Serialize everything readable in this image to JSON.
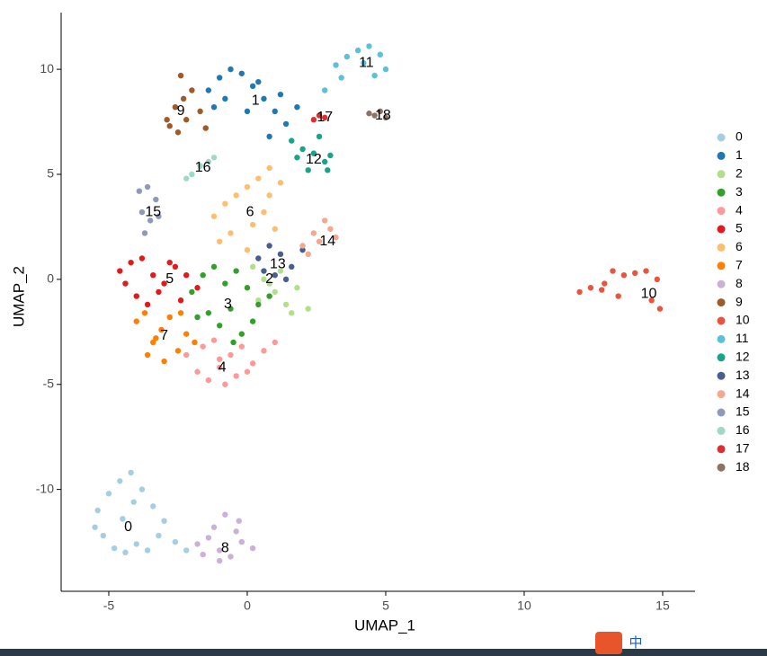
{
  "chart_data": {
    "type": "scatter",
    "xlabel": "UMAP_1",
    "ylabel": "UMAP_2",
    "xlim": [
      -6.72,
      16.17
    ],
    "ylim": [
      -14.85,
      12.7
    ],
    "xticks": [
      -5,
      0,
      5,
      10,
      15
    ],
    "yticks": [
      -10,
      -5,
      0,
      5,
      10
    ],
    "grid": false,
    "legend": "right",
    "series": [
      {
        "name": "0",
        "color": "#a6cee3",
        "x": [
          -5.4,
          -5.0,
          -4.6,
          -4.2,
          -3.8,
          -3.4,
          -3.0,
          -2.6,
          -5.2,
          -4.8,
          -4.4,
          -4.0,
          -3.6,
          -4.5,
          -4.1,
          -5.5,
          -3.2,
          -2.2
        ],
        "y": [
          -11.0,
          -10.2,
          -9.6,
          -9.2,
          -10.0,
          -10.8,
          -11.5,
          -12.5,
          -12.2,
          -12.8,
          -13.0,
          -12.6,
          -12.9,
          -11.4,
          -10.6,
          -11.8,
          -12.2,
          -12.9
        ]
      },
      {
        "name": "1",
        "color": "#1f78b4",
        "x": [
          -1.4,
          -1.0,
          -0.6,
          -0.2,
          0.2,
          0.6,
          1.0,
          1.4,
          1.8,
          -0.8,
          0.0,
          0.8,
          0.4,
          1.2,
          -1.2
        ],
        "y": [
          9.0,
          9.6,
          10.0,
          9.8,
          9.2,
          8.6,
          8.0,
          7.4,
          8.2,
          8.6,
          8.0,
          6.8,
          9.4,
          8.8,
          8.2
        ]
      },
      {
        "name": "2",
        "color": "#b2df8a",
        "x": [
          0.2,
          0.6,
          1.0,
          1.4,
          1.8,
          2.2,
          0.4,
          1.2,
          1.6,
          0.8
        ],
        "y": [
          0.6,
          0.0,
          -0.6,
          -1.2,
          -0.4,
          -1.4,
          -1.0,
          0.4,
          -1.6,
          -0.2
        ]
      },
      {
        "name": "3",
        "color": "#33a02c",
        "x": [
          -2.0,
          -1.6,
          -1.2,
          -0.8,
          -0.4,
          0.0,
          0.4,
          0.8,
          -1.4,
          -1.0,
          -0.6,
          -0.2,
          0.2,
          -1.8,
          -0.5
        ],
        "y": [
          -0.6,
          0.2,
          0.6,
          -0.2,
          0.4,
          -0.4,
          -1.2,
          -0.8,
          -1.6,
          -2.2,
          -1.4,
          -2.6,
          -2.0,
          -1.8,
          -3.0
        ]
      },
      {
        "name": "4",
        "color": "#fb9a99",
        "x": [
          -2.2,
          -1.8,
          -1.4,
          -1.0,
          -0.6,
          -0.2,
          0.2,
          0.6,
          1.0,
          -1.6,
          -1.2,
          -0.8,
          -0.4,
          0.0,
          -1.0
        ],
        "y": [
          -3.6,
          -4.4,
          -4.8,
          -4.2,
          -3.6,
          -3.2,
          -4.0,
          -3.4,
          -3.0,
          -3.2,
          -2.9,
          -5.0,
          -4.6,
          -4.4,
          -3.8
        ]
      },
      {
        "name": "5",
        "color": "#e31a1c",
        "x": [
          -4.6,
          -4.2,
          -3.8,
          -3.4,
          -3.0,
          -2.6,
          -2.2,
          -1.8,
          -4.0,
          -3.6,
          -3.2,
          -2.8,
          -2.4,
          -4.4
        ],
        "y": [
          0.4,
          0.8,
          1.0,
          0.2,
          -0.2,
          0.6,
          0.2,
          -0.4,
          -0.8,
          -1.2,
          -0.6,
          0.8,
          -1.0,
          -0.2
        ]
      },
      {
        "name": "6",
        "color": "#fdbf6f",
        "x": [
          -1.2,
          -0.8,
          -0.4,
          0.0,
          0.4,
          0.8,
          1.2,
          -0.6,
          0.2,
          0.6,
          1.0,
          -1.0,
          0.0,
          0.8
        ],
        "y": [
          3.0,
          3.6,
          4.0,
          4.4,
          4.8,
          5.3,
          4.6,
          2.2,
          2.6,
          3.2,
          2.4,
          1.8,
          1.4,
          4.0
        ]
      },
      {
        "name": "7",
        "color": "#ff7f00",
        "x": [
          -4.0,
          -3.7,
          -3.4,
          -3.1,
          -2.8,
          -2.5,
          -2.2,
          -1.9,
          -3.6,
          -3.0,
          -2.4,
          -3.3
        ],
        "y": [
          -2.0,
          -1.6,
          -3.0,
          -2.4,
          -1.8,
          -3.4,
          -2.6,
          -3.0,
          -3.6,
          -3.9,
          -1.6,
          -2.8
        ]
      },
      {
        "name": "8",
        "color": "#cab2d6",
        "x": [
          -1.8,
          -1.4,
          -1.0,
          -0.6,
          -0.2,
          0.2,
          -1.2,
          -0.8,
          -0.4,
          -1.0,
          -1.6,
          -0.3
        ],
        "y": [
          -12.6,
          -12.3,
          -12.9,
          -13.2,
          -12.5,
          -12.8,
          -11.8,
          -11.2,
          -12.0,
          -13.4,
          -13.1,
          -11.5
        ]
      },
      {
        "name": "9",
        "color": "#9e5a2a",
        "x": [
          -2.9,
          -2.6,
          -2.3,
          -2.0,
          -1.7,
          -2.8,
          -2.5,
          -2.2,
          -1.5,
          -2.4
        ],
        "y": [
          7.6,
          8.2,
          8.6,
          9.0,
          8.0,
          7.3,
          7.0,
          7.6,
          7.2,
          9.7
        ]
      },
      {
        "name": "10",
        "color": "#e8553f",
        "x": [
          12.0,
          12.4,
          12.8,
          13.2,
          13.6,
          14.0,
          14.4,
          14.8,
          14.9,
          14.6,
          13.4,
          12.9
        ],
        "y": [
          -0.6,
          -0.4,
          -0.5,
          0.4,
          0.2,
          0.3,
          0.4,
          0.0,
          -1.4,
          -1.0,
          -0.8,
          -0.2
        ]
      },
      {
        "name": "11",
        "color": "#5bc0da",
        "x": [
          3.2,
          3.6,
          4.0,
          4.4,
          4.8,
          5.0,
          3.4,
          2.8,
          4.6,
          4.2
        ],
        "y": [
          10.2,
          10.6,
          10.9,
          11.1,
          10.7,
          10.0,
          9.6,
          9.0,
          9.7,
          10.3
        ]
      },
      {
        "name": "12",
        "color": "#17a589",
        "x": [
          1.6,
          2.0,
          2.4,
          2.8,
          3.0,
          2.2,
          1.8,
          2.6,
          2.9
        ],
        "y": [
          6.6,
          6.2,
          6.0,
          5.6,
          5.9,
          5.2,
          5.8,
          6.8,
          5.2
        ]
      },
      {
        "name": "13",
        "color": "#4a5d8f",
        "x": [
          0.4,
          0.8,
          1.2,
          1.6,
          2.0,
          1.0,
          1.4,
          0.6
        ],
        "y": [
          1.0,
          1.6,
          1.2,
          0.6,
          1.4,
          0.2,
          0.0,
          0.4
        ]
      },
      {
        "name": "14",
        "color": "#f4a88e",
        "x": [
          2.2,
          2.6,
          3.0,
          3.2,
          2.8,
          2.4,
          2.0
        ],
        "y": [
          1.2,
          1.8,
          2.4,
          2.0,
          2.8,
          2.2,
          1.6
        ]
      },
      {
        "name": "15",
        "color": "#8f99bb",
        "x": [
          -3.9,
          -3.6,
          -3.3,
          -3.8,
          -3.5,
          -3.2,
          -3.7
        ],
        "y": [
          4.2,
          4.4,
          3.8,
          3.2,
          2.8,
          3.0,
          2.2
        ]
      },
      {
        "name": "16",
        "color": "#9fd8c6",
        "x": [
          -2.0,
          -1.7,
          -1.4,
          -2.2,
          -1.2
        ],
        "y": [
          5.0,
          5.4,
          5.6,
          4.8,
          5.8
        ]
      },
      {
        "name": "17",
        "color": "#dc2f2f",
        "x": [
          2.4,
          2.6,
          2.8
        ],
        "y": [
          7.6,
          7.8,
          7.7
        ]
      },
      {
        "name": "18",
        "color": "#8c7363",
        "x": [
          4.6,
          4.8,
          5.0,
          4.4
        ],
        "y": [
          7.8,
          8.0,
          7.7,
          7.9
        ]
      }
    ],
    "annotations": [
      {
        "text": "0",
        "x": -4.3,
        "y": -11.8
      },
      {
        "text": "1",
        "x": 0.3,
        "y": 8.5
      },
      {
        "text": "2",
        "x": 0.8,
        "y": 0.0
      },
      {
        "text": "3",
        "x": -0.7,
        "y": -1.2
      },
      {
        "text": "4",
        "x": -0.9,
        "y": -4.2
      },
      {
        "text": "5",
        "x": -2.8,
        "y": 0.0
      },
      {
        "text": "6",
        "x": 0.1,
        "y": 3.2
      },
      {
        "text": "7",
        "x": -3.0,
        "y": -2.7
      },
      {
        "text": "8",
        "x": -0.8,
        "y": -12.8
      },
      {
        "text": "9",
        "x": -2.4,
        "y": 8.0
      },
      {
        "text": "10",
        "x": 14.5,
        "y": -0.7
      },
      {
        "text": "11",
        "x": 4.3,
        "y": 10.3
      },
      {
        "text": "12",
        "x": 2.4,
        "y": 5.7
      },
      {
        "text": "13",
        "x": 1.1,
        "y": 0.7
      },
      {
        "text": "14",
        "x": 2.9,
        "y": 1.8
      },
      {
        "text": "15",
        "x": -3.4,
        "y": 3.2
      },
      {
        "text": "16",
        "x": -1.6,
        "y": 5.3
      },
      {
        "text": "17",
        "x": 2.8,
        "y": 7.7
      },
      {
        "text": "18",
        "x": 4.9,
        "y": 7.8
      }
    ]
  },
  "taskbar": {
    "ime_text": "中"
  }
}
